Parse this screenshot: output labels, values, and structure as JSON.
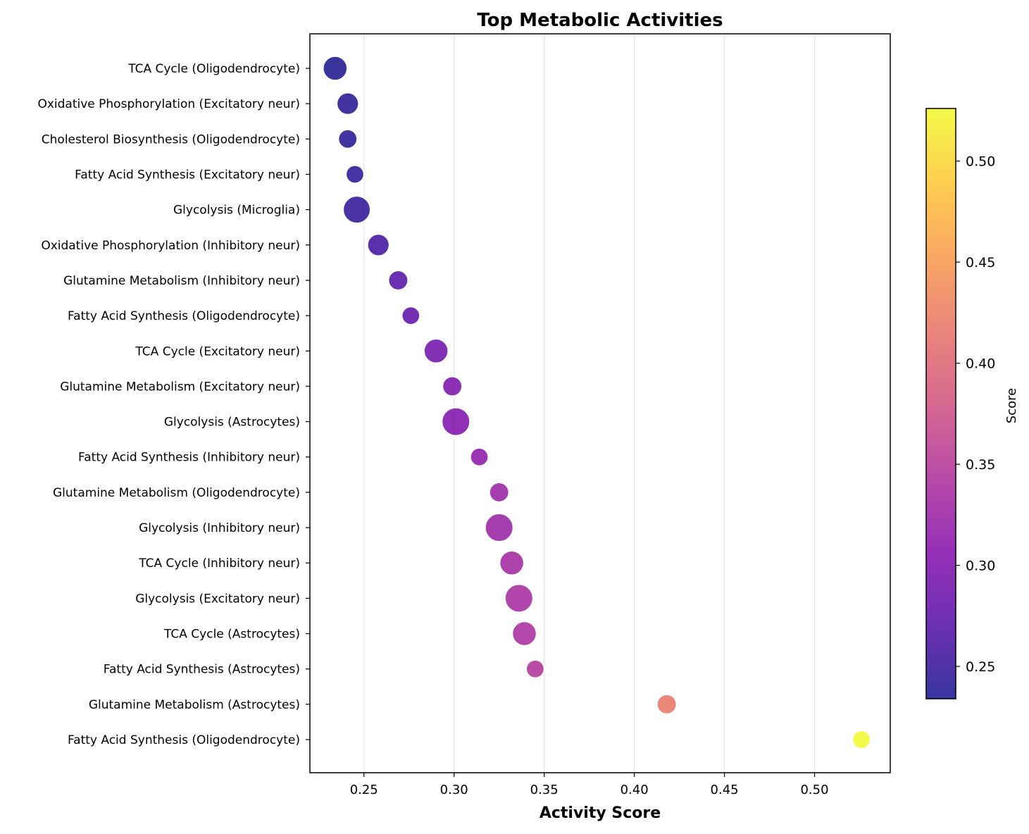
{
  "chart_data": {
    "type": "scatter",
    "title": "Top Metabolic Activities",
    "xlabel": "Activity Score",
    "ylabel": "",
    "xlim": [
      0.22,
      0.542
    ],
    "x_ticks": [
      0.25,
      0.3,
      0.35,
      0.4,
      0.45,
      0.5
    ],
    "x_tick_labels": [
      "0.25",
      "0.30",
      "0.35",
      "0.40",
      "0.45",
      "0.50"
    ],
    "grid": "vertical",
    "colormap": "plasma",
    "colorbar": {
      "label": "Score",
      "range": [
        0.234,
        0.526
      ],
      "ticks": [
        0.25,
        0.3,
        0.35,
        0.4,
        0.45,
        0.5
      ],
      "tick_labels": [
        "0.25",
        "0.30",
        "0.35",
        "0.40",
        "0.45",
        "0.50"
      ]
    },
    "points": [
      {
        "label": "TCA Cycle (Oligodendrocyte)",
        "x": 0.234,
        "size": 0.75
      },
      {
        "label": "Oxidative Phosphorylation (Excitatory neur)",
        "x": 0.241,
        "size": 0.6
      },
      {
        "label": "Cholesterol Biosynthesis (Oligodendrocyte)",
        "x": 0.241,
        "size": 0.4
      },
      {
        "label": "Fatty Acid Synthesis (Excitatory neur)",
        "x": 0.245,
        "size": 0.35
      },
      {
        "label": "Glycolysis (Microglia)",
        "x": 0.246,
        "size": 0.95
      },
      {
        "label": "Oxidative Phosphorylation (Inhibitory neur)",
        "x": 0.258,
        "size": 0.6
      },
      {
        "label": "Glutamine Metabolism (Inhibitory neur)",
        "x": 0.269,
        "size": 0.45
      },
      {
        "label": "Fatty Acid Synthesis (Oligodendrocyte)",
        "x": 0.276,
        "size": 0.35
      },
      {
        "label": "TCA Cycle (Excitatory neur)",
        "x": 0.29,
        "size": 0.75
      },
      {
        "label": "Glutamine Metabolism (Excitatory neur)",
        "x": 0.299,
        "size": 0.45
      },
      {
        "label": "Glycolysis (Astrocytes)",
        "x": 0.301,
        "size": 1.0
      },
      {
        "label": "Fatty Acid Synthesis (Inhibitory neur)",
        "x": 0.314,
        "size": 0.35
      },
      {
        "label": "Glutamine Metabolism (Oligodendrocyte)",
        "x": 0.325,
        "size": 0.45
      },
      {
        "label": "Glycolysis (Inhibitory neur)",
        "x": 0.325,
        "size": 1.0
      },
      {
        "label": "TCA Cycle (Inhibitory neur)",
        "x": 0.332,
        "size": 0.75
      },
      {
        "label": "Glycolysis (Excitatory neur)",
        "x": 0.336,
        "size": 1.0
      },
      {
        "label": "TCA Cycle (Astrocytes)",
        "x": 0.339,
        "size": 0.75
      },
      {
        "label": "Fatty Acid Synthesis (Astrocytes)",
        "x": 0.345,
        "size": 0.35
      },
      {
        "label": "Glutamine Metabolism (Astrocytes)",
        "x": 0.418,
        "size": 0.45
      },
      {
        "label": "Fatty Acid Synthesis (Oligodendrocyte)",
        "x": 0.526,
        "size": 0.35
      }
    ]
  }
}
